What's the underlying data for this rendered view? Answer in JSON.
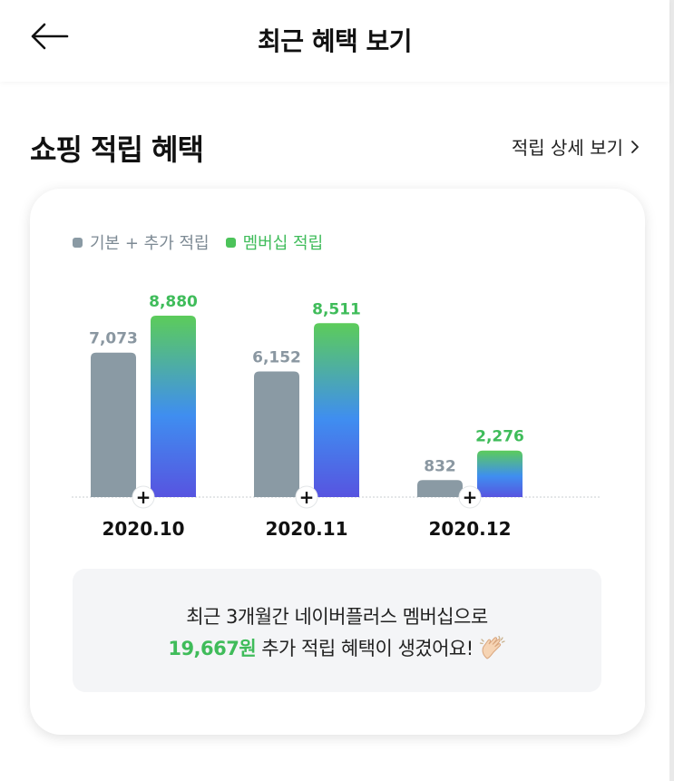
{
  "header": {
    "title": "최근 혜택 보기"
  },
  "section": {
    "title": "쇼핑 적립 혜택",
    "detail_link": "적립 상세 보기"
  },
  "legend": {
    "base_label": "기본 + 추가 적립",
    "membership_label": "멤버십 적립"
  },
  "colors": {
    "base_bar": "#8a9aa4",
    "membership_top": "#5ccc5a",
    "membership_mid": "#3f8ef0",
    "membership_bottom": "#5754e0",
    "green_text": "#3fbc5a",
    "gray_text": "#8a97a1"
  },
  "chart_data": {
    "type": "bar",
    "categories": [
      "2020.10",
      "2020.11",
      "2020.12"
    ],
    "series": [
      {
        "name": "기본 + 추가 적립",
        "values": [
          7073,
          6152,
          832
        ],
        "labels": [
          "7,073",
          "6,152",
          "832"
        ]
      },
      {
        "name": "멤버십 적립",
        "values": [
          8880,
          8511,
          2276
        ],
        "labels": [
          "8,880",
          "8,511",
          "2,276"
        ]
      }
    ],
    "ylim": [
      0,
      8880
    ],
    "grid": false,
    "legend": "top-left",
    "separator_symbol": "+"
  },
  "summary": {
    "line1": "최근 3개월간 네이버플러스 멤버십으로",
    "amount": "19,667원",
    "line2_rest": "추가 적립 혜택이 생겼어요!"
  },
  "icons": {
    "back": "arrow-left-icon",
    "chevron": "chevron-right-icon",
    "clap": "clapping-hands-icon"
  }
}
